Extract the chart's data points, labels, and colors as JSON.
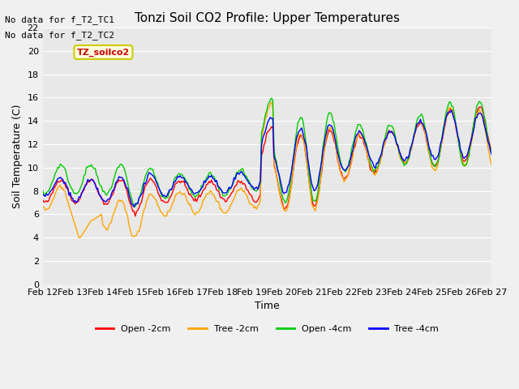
{
  "title": "Tonzi Soil CO2 Profile: Upper Temperatures",
  "xlabel": "Time",
  "ylabel": "Soil Temperature (C)",
  "no_data_text": [
    "No data for f_T2_TC1",
    "No data for f_T2_TC2"
  ],
  "dataset_label": "TZ_soilco2",
  "legend_entries": [
    "Open -2cm",
    "Tree -2cm",
    "Open -4cm",
    "Tree -4cm"
  ],
  "legend_colors": [
    "#ff0000",
    "#ffa500",
    "#00cc00",
    "#0000ff"
  ],
  "ylim": [
    0,
    22
  ],
  "yticks": [
    0,
    2,
    4,
    6,
    8,
    10,
    12,
    14,
    16,
    18,
    20,
    22
  ],
  "xticklabels": [
    "Feb 12",
    "Feb 13",
    "Feb 14",
    "Feb 15",
    "Feb 16",
    "Feb 17",
    "Feb 18",
    "Feb 19",
    "Feb 20",
    "Feb 21",
    "Feb 22",
    "Feb 23",
    "Feb 24",
    "Feb 25",
    "Feb 26",
    "Feb 27"
  ],
  "bg_color": "#e8e8e8",
  "plot_bg_color": "#e8e8e8",
  "grid_color": "#ffffff",
  "line_colors": {
    "open_2cm": "#ff0000",
    "tree_2cm": "#ffa500",
    "open_4cm": "#00cc00",
    "tree_4cm": "#0000ff"
  }
}
